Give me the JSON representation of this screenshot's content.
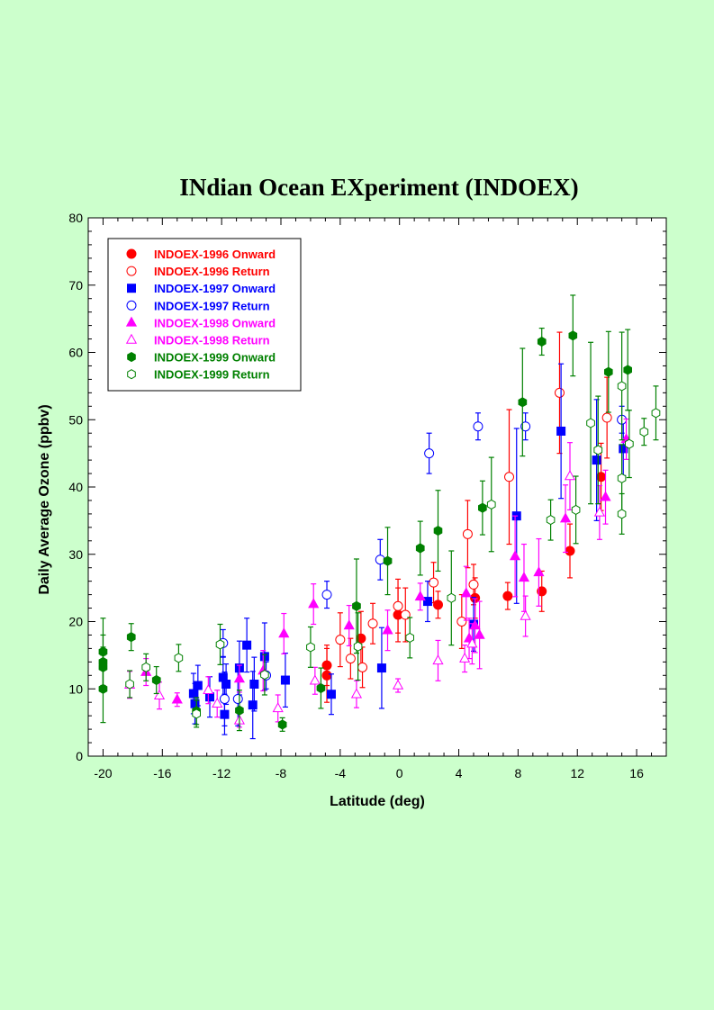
{
  "chart_data": {
    "type": "scatter",
    "title": "INdian Ocean EXperiment  (INDOEX)",
    "xlabel": "Latitude (deg)",
    "ylabel": "Daily Average Ozone (ppbv)",
    "xlim": [
      -21,
      18
    ],
    "ylim": [
      0,
      80
    ],
    "xticks": [
      -20,
      -16,
      -12,
      -8,
      -4,
      0,
      4,
      8,
      12,
      16
    ],
    "yticks": [
      0,
      10,
      20,
      30,
      40,
      50,
      60,
      70,
      80
    ],
    "grid": false,
    "legend_position": "top-left",
    "series": [
      {
        "name": "INDOEX-1996 Onward",
        "color": "#ff0000",
        "marker": "circle",
        "filled": true,
        "points": [
          {
            "x": -4.9,
            "y": 13.5,
            "err": 3
          },
          {
            "x": -4.9,
            "y": 12.0,
            "err": 4
          },
          {
            "x": -2.6,
            "y": 17.5,
            "err": 4
          },
          {
            "x": -0.1,
            "y": 21.0,
            "err": 4
          },
          {
            "x": 2.6,
            "y": 22.5,
            "err": 2
          },
          {
            "x": 5.1,
            "y": 23.5,
            "err": 3
          },
          {
            "x": 7.3,
            "y": 23.8,
            "err": 2
          },
          {
            "x": 9.6,
            "y": 24.5,
            "err": 3
          },
          {
            "x": 11.5,
            "y": 30.5,
            "err": 4
          },
          {
            "x": 13.6,
            "y": 41.5,
            "err": 5
          }
        ]
      },
      {
        "name": "INDOEX-1996 Return",
        "color": "#ff0000",
        "marker": "circle",
        "filled": false,
        "points": [
          {
            "x": -4.0,
            "y": 17.3,
            "err": 4
          },
          {
            "x": -3.3,
            "y": 14.5,
            "err": 3
          },
          {
            "x": -2.5,
            "y": 13.2,
            "err": 3
          },
          {
            "x": -1.8,
            "y": 19.7,
            "err": 3
          },
          {
            "x": -0.1,
            "y": 22.3,
            "err": 4
          },
          {
            "x": 0.4,
            "y": 21.0,
            "err": 4
          },
          {
            "x": 2.3,
            "y": 25.8,
            "err": 3
          },
          {
            "x": 4.2,
            "y": 20.0,
            "err": 4
          },
          {
            "x": 4.6,
            "y": 33.0,
            "err": 5
          },
          {
            "x": 5.0,
            "y": 25.5,
            "err": 3
          },
          {
            "x": 7.4,
            "y": 41.5,
            "err": 10
          },
          {
            "x": 10.8,
            "y": 54.0,
            "err": 9
          },
          {
            "x": 14.0,
            "y": 50.3,
            "err": 6
          }
        ]
      },
      {
        "name": "INDOEX-1997 Onward",
        "color": "#0000ff",
        "marker": "square",
        "filled": true,
        "points": [
          {
            "x": -13.9,
            "y": 9.3,
            "err": 3
          },
          {
            "x": -13.8,
            "y": 7.8,
            "err": 3
          },
          {
            "x": -13.6,
            "y": 10.5,
            "err": 3
          },
          {
            "x": -12.8,
            "y": 8.8,
            "err": 3
          },
          {
            "x": -11.9,
            "y": 11.7,
            "err": 3
          },
          {
            "x": -11.8,
            "y": 6.2,
            "err": 3
          },
          {
            "x": -11.7,
            "y": 10.7,
            "err": 3
          },
          {
            "x": -10.8,
            "y": 13.1,
            "err": 4
          },
          {
            "x": -10.3,
            "y": 16.5,
            "err": 4
          },
          {
            "x": -9.9,
            "y": 7.6,
            "err": 5
          },
          {
            "x": -9.8,
            "y": 10.7,
            "err": 4
          },
          {
            "x": -9.1,
            "y": 14.8,
            "err": 5
          },
          {
            "x": -7.7,
            "y": 11.3,
            "err": 4
          },
          {
            "x": -4.6,
            "y": 9.2,
            "err": 3
          },
          {
            "x": -1.2,
            "y": 13.1,
            "err": 6
          },
          {
            "x": 1.9,
            "y": 23.0,
            "err": 3
          },
          {
            "x": 5.0,
            "y": 19.6,
            "err": 4
          },
          {
            "x": 7.9,
            "y": 35.7,
            "err": 13
          },
          {
            "x": 10.9,
            "y": 48.3,
            "err": 10
          },
          {
            "x": 13.3,
            "y": 44.0,
            "err": 9
          },
          {
            "x": 15.1,
            "y": 45.7,
            "err": 4
          }
        ]
      },
      {
        "name": "INDOEX-1997 Return",
        "color": "#0000ff",
        "marker": "circle",
        "filled": false,
        "points": [
          {
            "x": -11.9,
            "y": 16.8,
            "err": 2
          },
          {
            "x": -11.8,
            "y": 8.5,
            "err": 4
          },
          {
            "x": -10.9,
            "y": 8.5,
            "err": 4
          },
          {
            "x": -9.0,
            "y": 12.0,
            "err": 2
          },
          {
            "x": -4.9,
            "y": 24.0,
            "err": 2
          },
          {
            "x": -1.3,
            "y": 29.2,
            "err": 3
          },
          {
            "x": 2.0,
            "y": 45.0,
            "err": 3
          },
          {
            "x": 5.3,
            "y": 49.0,
            "err": 2
          },
          {
            "x": 8.5,
            "y": 49.0,
            "err": 2
          },
          {
            "x": 15.0,
            "y": 50.0,
            "err": 2
          }
        ]
      },
      {
        "name": "INDOEX-1998 Onward",
        "color": "#ff00ff",
        "marker": "triangle",
        "filled": true,
        "points": [
          {
            "x": -17.1,
            "y": 12.5,
            "err": 2
          },
          {
            "x": -15.0,
            "y": 8.4,
            "err": 1
          },
          {
            "x": -10.8,
            "y": 11.5,
            "err": 2
          },
          {
            "x": -9.2,
            "y": 12.7,
            "err": 3
          },
          {
            "x": -7.8,
            "y": 18.2,
            "err": 3
          },
          {
            "x": -5.8,
            "y": 22.6,
            "err": 3
          },
          {
            "x": -3.4,
            "y": 19.4,
            "err": 3
          },
          {
            "x": -0.8,
            "y": 18.7,
            "err": 3
          },
          {
            "x": 1.4,
            "y": 23.7,
            "err": 2
          },
          {
            "x": 4.5,
            "y": 24.2,
            "err": 4
          },
          {
            "x": 4.7,
            "y": 17.5,
            "err": 3
          },
          {
            "x": 5.1,
            "y": 19.4,
            "err": 4
          },
          {
            "x": 5.4,
            "y": 18.0,
            "err": 5
          },
          {
            "x": 7.8,
            "y": 29.7,
            "err": 6
          },
          {
            "x": 8.4,
            "y": 26.5,
            "err": 5
          },
          {
            "x": 9.4,
            "y": 27.3,
            "err": 5
          },
          {
            "x": 11.2,
            "y": 35.3,
            "err": 5
          },
          {
            "x": 13.9,
            "y": 38.5,
            "err": 4
          },
          {
            "x": 15.3,
            "y": 47.1,
            "err": 3
          }
        ]
      },
      {
        "name": "INDOEX-1998 Return",
        "color": "#ff00ff",
        "marker": "triangle",
        "filled": false,
        "points": [
          {
            "x": -18.2,
            "y": 10.6,
            "err": 2
          },
          {
            "x": -16.2,
            "y": 9.0,
            "err": 2
          },
          {
            "x": -12.9,
            "y": 9.8,
            "err": 2
          },
          {
            "x": -12.3,
            "y": 7.8,
            "err": 2
          },
          {
            "x": -10.8,
            "y": 5.3,
            "err": 1
          },
          {
            "x": -8.2,
            "y": 7.1,
            "err": 2
          },
          {
            "x": -5.7,
            "y": 11.2,
            "err": 2
          },
          {
            "x": -2.9,
            "y": 9.2,
            "err": 2
          },
          {
            "x": -0.1,
            "y": 10.5,
            "err": 1
          },
          {
            "x": 2.6,
            "y": 14.2,
            "err": 3
          },
          {
            "x": 4.4,
            "y": 14.5,
            "err": 2
          },
          {
            "x": 4.9,
            "y": 16.7,
            "err": 3
          },
          {
            "x": 8.5,
            "y": 20.8,
            "err": 3
          },
          {
            "x": 11.5,
            "y": 41.6,
            "err": 5
          },
          {
            "x": 13.5,
            "y": 36.2,
            "err": 4
          }
        ]
      },
      {
        "name": "INDOEX-1999 Onward",
        "color": "#008000",
        "marker": "hexagon",
        "filled": true,
        "points": [
          {
            "x": -20.0,
            "y": 15.5,
            "err": 5
          },
          {
            "x": -20.0,
            "y": 14.0,
            "err": 4
          },
          {
            "x": -20.0,
            "y": 13.2,
            "err": 3
          },
          {
            "x": -20.0,
            "y": 10.0,
            "err": 5
          },
          {
            "x": -18.1,
            "y": 17.7,
            "err": 2
          },
          {
            "x": -16.4,
            "y": 11.3,
            "err": 2
          },
          {
            "x": -13.7,
            "y": 6.7,
            "err": 2
          },
          {
            "x": -10.8,
            "y": 6.8,
            "err": 3
          },
          {
            "x": -7.9,
            "y": 4.7,
            "err": 1
          },
          {
            "x": -5.3,
            "y": 10.1,
            "err": 3
          },
          {
            "x": -2.9,
            "y": 22.3,
            "err": 7
          },
          {
            "x": -0.8,
            "y": 29.0,
            "err": 5
          },
          {
            "x": 1.4,
            "y": 30.9,
            "err": 4
          },
          {
            "x": 2.6,
            "y": 33.5,
            "err": 6
          },
          {
            "x": 5.6,
            "y": 36.9,
            "err": 4
          },
          {
            "x": 8.3,
            "y": 52.6,
            "err": 8
          },
          {
            "x": 9.6,
            "y": 61.6,
            "err": 2
          },
          {
            "x": 11.7,
            "y": 62.5,
            "err": 6
          },
          {
            "x": 14.1,
            "y": 57.1,
            "err": 6
          },
          {
            "x": 15.4,
            "y": 57.4,
            "err": 6
          }
        ]
      },
      {
        "name": "INDOEX-1999 Return",
        "color": "#008000",
        "marker": "hexagon",
        "filled": false,
        "points": [
          {
            "x": -18.2,
            "y": 10.7,
            "err": 2
          },
          {
            "x": -17.1,
            "y": 13.2,
            "err": 2
          },
          {
            "x": -14.9,
            "y": 14.6,
            "err": 2
          },
          {
            "x": -13.7,
            "y": 6.3,
            "err": 2
          },
          {
            "x": -12.1,
            "y": 16.6,
            "err": 3
          },
          {
            "x": -9.1,
            "y": 12.1,
            "err": 3
          },
          {
            "x": -6.0,
            "y": 16.2,
            "err": 3
          },
          {
            "x": -2.8,
            "y": 16.3,
            "err": 5
          },
          {
            "x": 0.7,
            "y": 17.6,
            "err": 3
          },
          {
            "x": 3.5,
            "y": 23.5,
            "err": 7
          },
          {
            "x": 6.2,
            "y": 37.4,
            "err": 7
          },
          {
            "x": 10.2,
            "y": 35.1,
            "err": 3
          },
          {
            "x": 11.9,
            "y": 36.6,
            "err": 5
          },
          {
            "x": 12.9,
            "y": 49.5,
            "err": 12
          },
          {
            "x": 13.4,
            "y": 45.5,
            "err": 8
          },
          {
            "x": 15.0,
            "y": 55.0,
            "err": 8
          },
          {
            "x": 15.0,
            "y": 41.3,
            "err": 5
          },
          {
            "x": 15.0,
            "y": 36.0,
            "err": 3
          },
          {
            "x": 15.5,
            "y": 46.4,
            "err": 5
          },
          {
            "x": 16.5,
            "y": 48.2,
            "err": 2
          },
          {
            "x": 17.3,
            "y": 51.0,
            "err": 4
          }
        ]
      }
    ]
  }
}
